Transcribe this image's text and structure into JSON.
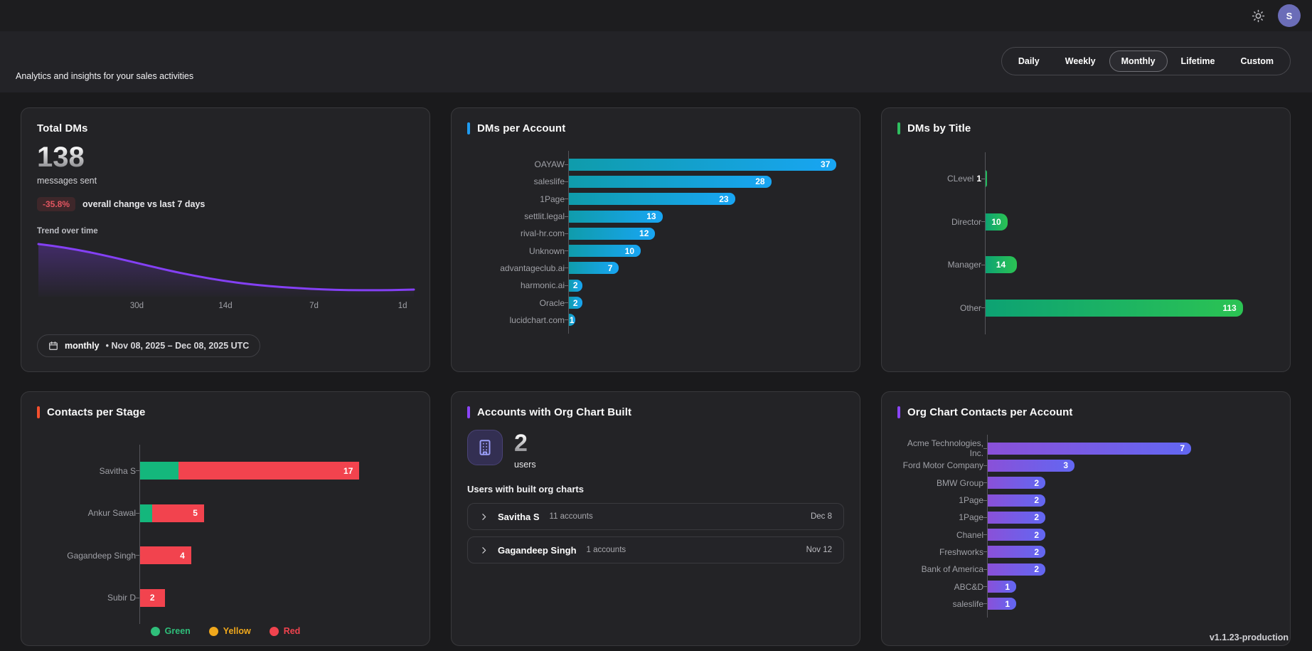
{
  "topbar": {
    "avatar_initial": "S"
  },
  "header": {
    "subtitle": "Analytics and insights for your sales activities",
    "range_tabs": [
      "Daily",
      "Weekly",
      "Monthly",
      "Lifetime",
      "Custom"
    ],
    "active_tab": "Monthly"
  },
  "cards": {
    "total_dms": {
      "title": "Total DMs",
      "value": "138",
      "unit": "messages sent",
      "change_badge": "-35.8%",
      "change_desc": "overall change vs last 7 days",
      "trend_title": "Trend over time",
      "footer_period": "monthly",
      "footer_range": "• Nov 08, 2025 – Dec 08, 2025 UTC"
    },
    "dms_per_account": {
      "title": "DMs per Account",
      "accent": "#1f9bf0"
    },
    "dms_by_title": {
      "title": "DMs by Title",
      "accent": "#2fbe5f"
    },
    "contacts_per_stage": {
      "title": "Contacts per Stage",
      "accent": "#f4502e"
    },
    "org_chart_built": {
      "title": "Accounts with Org Chart Built",
      "accent": "#8b45f7",
      "count": "2",
      "count_unit": "users",
      "list_title": "Users with built org charts",
      "users": [
        {
          "name": "Savitha S",
          "accounts": "11 accounts",
          "date": "Dec 8"
        },
        {
          "name": "Gagandeep Singh",
          "accounts": "1 accounts",
          "date": "Nov 12"
        }
      ]
    },
    "org_chart_contacts": {
      "title": "Org Chart Contacts per Account",
      "accent": "#8b45f7"
    }
  },
  "version": "v1.1.23-production",
  "chart_data": [
    {
      "id": "dm_trend",
      "type": "area",
      "title": "Trend over time",
      "x_ticks": [
        "30d",
        "14d",
        "7d",
        "1d"
      ],
      "x_tick_positions_pct": [
        26.5,
        50,
        73.5,
        97
      ],
      "points_norm": [
        [
          0,
          1.0
        ],
        [
          0.25,
          0.62
        ],
        [
          0.5,
          0.3
        ],
        [
          0.75,
          0.13
        ],
        [
          1.0,
          0.1
        ]
      ],
      "line_color": "#8440f5",
      "note": "declining curve, high at 30d+, flattening near zero toward 1d"
    },
    {
      "id": "dms_per_account",
      "type": "bar",
      "orientation": "horizontal",
      "categories": [
        "OAYAW",
        "saleslife",
        "1Page",
        "settlit.legal",
        "rival-hr.com",
        "Unknown",
        "advantageclub.ai",
        "harmonic.ai",
        "Oracle",
        "lucidchart.com"
      ],
      "values": [
        37,
        28,
        23,
        13,
        12,
        10,
        7,
        2,
        2,
        1
      ],
      "bar_gradient": [
        "#0f9cab",
        "#18a5f3"
      ]
    },
    {
      "id": "dms_by_title",
      "type": "bar",
      "orientation": "horizontal",
      "categories": [
        "CLevel",
        "Director",
        "Manager",
        "Other"
      ],
      "values": [
        1,
        10,
        14,
        113
      ],
      "bar_gradient": [
        "#0da273",
        "#2bc353"
      ]
    },
    {
      "id": "contacts_per_stage",
      "type": "stacked_bar",
      "orientation": "horizontal",
      "categories": [
        "Savitha S",
        "Ankur Sawal",
        "Gagandeep Singh",
        "Subir D"
      ],
      "series": [
        {
          "name": "Green",
          "values": [
            3,
            1,
            0,
            0
          ]
        },
        {
          "name": "Yellow",
          "values": [
            0,
            0,
            0,
            0
          ]
        },
        {
          "name": "Red",
          "values": [
            14,
            4,
            4,
            2
          ]
        }
      ],
      "totals": [
        17,
        5,
        4,
        2
      ],
      "segment_colors": {
        "Green": "#14b77c",
        "Yellow": "#f0a81c",
        "Red": "#f2434e"
      },
      "legend": [
        {
          "label": "Green",
          "color": "#2fbe7a"
        },
        {
          "label": "Yellow",
          "color": "#f0a81c"
        },
        {
          "label": "Red",
          "color": "#f0434e"
        }
      ]
    },
    {
      "id": "org_chart_contacts",
      "type": "bar",
      "orientation": "horizontal",
      "categories": [
        "Acme Technologies, Inc.",
        "Ford Motor Company",
        "BMW Group",
        "1Page",
        "1Page",
        "Chanel",
        "Freshworks",
        "Bank of America",
        "ABC&D",
        "saleslife"
      ],
      "values": [
        7,
        3,
        2,
        2,
        2,
        2,
        2,
        2,
        1,
        1
      ],
      "bar_gradient": [
        "#8a50d8",
        "#6267f2"
      ]
    }
  ]
}
